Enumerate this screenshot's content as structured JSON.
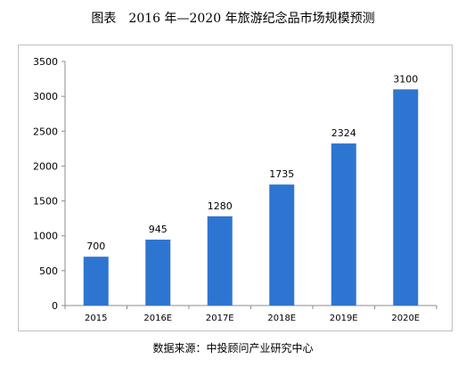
{
  "title": "图表　2016 年—2020 年旅游纪念品市场规模预测",
  "source": "数据来源：中投顾问产业研究中心",
  "chart_data": {
    "type": "bar",
    "categories": [
      "2015",
      "2016E",
      "2017E",
      "2018E",
      "2019E",
      "2020E"
    ],
    "values": [
      700,
      945,
      1280,
      1735,
      2324,
      3100
    ],
    "value_labels": [
      "700",
      "945",
      "1280",
      "1735",
      "2324",
      "3100"
    ],
    "ylim": [
      0,
      3500
    ],
    "yticks": [
      "0",
      "500",
      "1000",
      "1500",
      "2000",
      "2500",
      "3000",
      "3500"
    ],
    "grid": false,
    "legend": "none",
    "bar_color": "#2e75d2"
  }
}
